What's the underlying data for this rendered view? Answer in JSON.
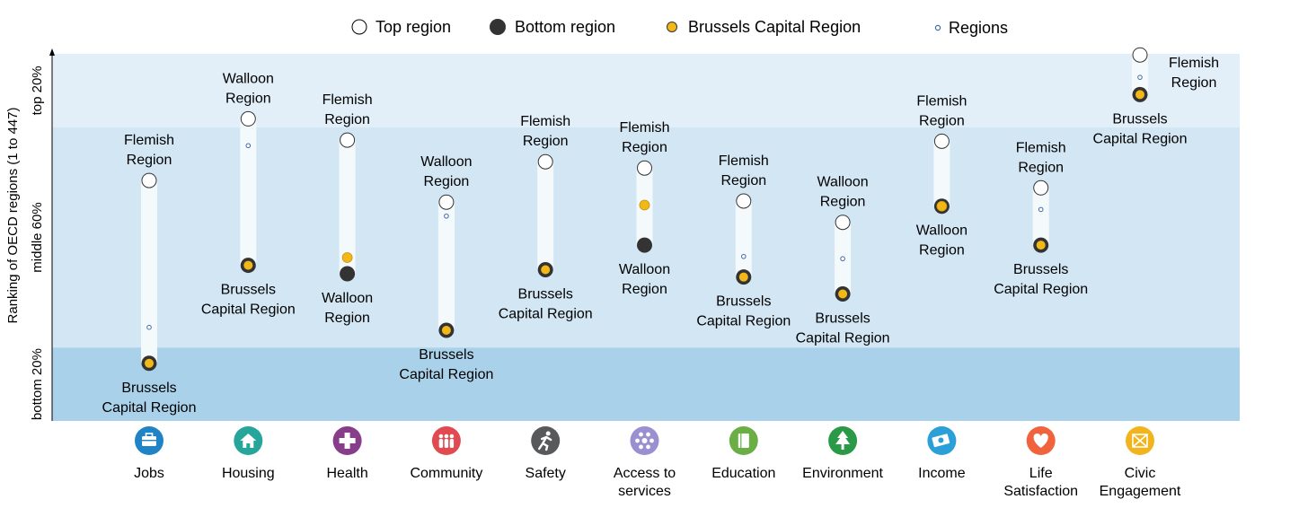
{
  "chart_data": {
    "type": "range-dot",
    "ylabel": "Ranking of OECD regions (1 to 447)",
    "bands": [
      {
        "label": "top 20%",
        "from": 0,
        "to": 20
      },
      {
        "label": "middle 60%",
        "from": 20,
        "to": 80
      },
      {
        "label": "bottom 20%",
        "from": 80,
        "to": 100
      }
    ],
    "ylim": [
      0,
      100
    ],
    "legend": {
      "top": "Top region",
      "bottom": "Bottom region",
      "brussels": "Brussels Capital Region",
      "regions": "Regions"
    },
    "colors": {
      "band_top": "#e2eff8",
      "band_middle": "#d3e6f3",
      "band_bottom": "#a9d2ea",
      "bar": "#f4f9fc",
      "bottom_marker": "#333333",
      "brussels_marker": "#f2b817",
      "region_marker": "#3f6aa4"
    },
    "categories": [
      {
        "name": [
          "Jobs"
        ],
        "icon": "briefcase-icon",
        "color": "#1f83c6",
        "top": 34.5,
        "bottom": 84.3,
        "brussels": 84.3,
        "regions": [
          74.5
        ],
        "top_label": [
          "Flemish",
          "Region"
        ],
        "bottom_label": [
          "Brussels",
          "Capital Region"
        ],
        "bottom_is_brussels": true
      },
      {
        "name": [
          "Housing"
        ],
        "icon": "house-icon",
        "color": "#26a59a",
        "top": 17.7,
        "bottom": 57.6,
        "brussels": 57.6,
        "regions": [
          25.0
        ],
        "top_label": [
          "Walloon",
          "Region"
        ],
        "bottom_label": [
          "Brussels",
          "Capital Region"
        ],
        "bottom_is_brussels": true
      },
      {
        "name": [
          "Health"
        ],
        "icon": "health-cross-icon",
        "color": "#873d8a",
        "top": 23.5,
        "bottom": 59.9,
        "brussels": 55.5,
        "regions": [],
        "top_label": [
          "Flemish",
          "Region"
        ],
        "bottom_label": [
          "Walloon",
          "Region"
        ],
        "bottom_is_brussels": false
      },
      {
        "name": [
          "Community"
        ],
        "icon": "people-icon",
        "color": "#e04a50",
        "top": 40.4,
        "bottom": 75.3,
        "brussels": 75.3,
        "regions": [
          44.2
        ],
        "top_label": [
          "Walloon",
          "Region"
        ],
        "bottom_label": [
          "Brussels",
          "Capital Region"
        ],
        "bottom_is_brussels": true
      },
      {
        "name": [
          "Safety"
        ],
        "icon": "running-figure-icon",
        "color": "#58595b",
        "top": 29.4,
        "bottom": 58.8,
        "brussels": 58.8,
        "regions": [
          57.6
        ],
        "top_label": [
          "Flemish",
          "Region"
        ],
        "bottom_label": [
          "Brussels",
          "Capital Region"
        ],
        "bottom_is_brussels": true
      },
      {
        "name": [
          "Access to",
          "services"
        ],
        "icon": "network-dots-icon",
        "color": "#9a8fd0",
        "top": 31.1,
        "bottom": 52.1,
        "brussels": 41.2,
        "regions": [],
        "top_label": [
          "Flemish",
          "Region"
        ],
        "bottom_label": [
          "Walloon",
          "Region"
        ],
        "bottom_is_brussels": false
      },
      {
        "name": [
          "Education"
        ],
        "icon": "book-icon",
        "color": "#6aae45",
        "top": 40.1,
        "bottom": 60.8,
        "brussels": 60.8,
        "regions": [
          55.2
        ],
        "top_label": [
          "Flemish",
          "Region"
        ],
        "bottom_label": [
          "Brussels",
          "Capital Region"
        ],
        "bottom_is_brussels": true
      },
      {
        "name": [
          "Environment"
        ],
        "icon": "tree-icon",
        "color": "#2b9a48",
        "top": 45.9,
        "bottom": 65.4,
        "brussels": 65.4,
        "regions": [
          55.8
        ],
        "top_label": [
          "Walloon",
          "Region"
        ],
        "bottom_label": [
          "Brussels",
          "Capital Region"
        ],
        "bottom_is_brussels": true
      },
      {
        "name": [
          "Income"
        ],
        "icon": "banknote-icon",
        "color": "#2a9fd8",
        "top": 23.8,
        "bottom": 41.5,
        "brussels": 41.5,
        "regions": [],
        "top_label": [
          "Flemish",
          "Region"
        ],
        "bottom_label": [
          "Walloon",
          "Region"
        ],
        "bottom_is_brussels": false
      },
      {
        "name": [
          "Life",
          "Satisfaction"
        ],
        "icon": "heart-icon",
        "color": "#f0633d",
        "top": 36.5,
        "bottom": 52.1,
        "brussels": 52.1,
        "regions": [
          42.4
        ],
        "top_label": [
          "Flemish",
          "Region"
        ],
        "bottom_label": [
          "Brussels",
          "Capital Region"
        ],
        "bottom_is_brussels": true
      },
      {
        "name": [
          "Civic",
          "Engagement"
        ],
        "icon": "ballot-envelope-icon",
        "color": "#f2b41c",
        "top": 0.3,
        "bottom": 11.1,
        "brussels": 11.1,
        "regions": [
          6.4
        ],
        "top_label": [
          "Flemish",
          "Region"
        ],
        "bottom_label": [
          "Brussels",
          "Capital Region"
        ],
        "bottom_is_brussels": true
      }
    ]
  }
}
